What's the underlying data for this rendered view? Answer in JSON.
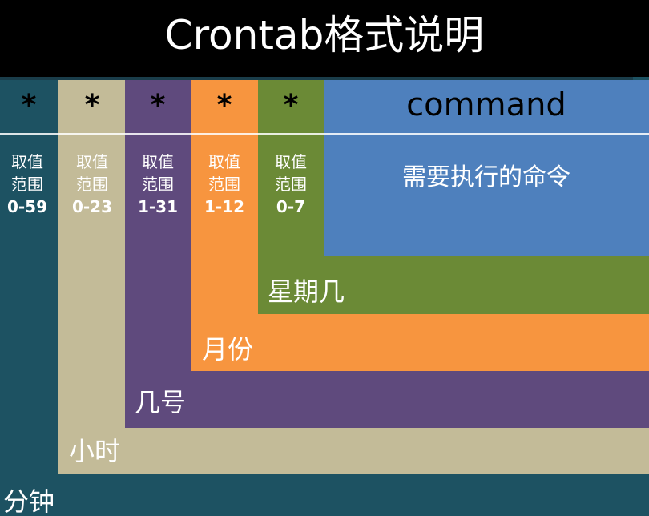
{
  "title": "Crontab格式说明",
  "fields": [
    {
      "star": "*",
      "range_label_1": "取值",
      "range_label_2": "范围",
      "range": "0-59",
      "name": "分钟",
      "color": "#1d5262"
    },
    {
      "star": "*",
      "range_label_1": "取值",
      "range_label_2": "范围",
      "range": "0-23",
      "name": "小时",
      "color": "#c3bb98"
    },
    {
      "star": "*",
      "range_label_1": "取值",
      "range_label_2": "范围",
      "range": "1-31",
      "name": "几号",
      "color": "#5f4a7d"
    },
    {
      "star": "*",
      "range_label_1": "取值",
      "range_label_2": "范围",
      "range": "1-12",
      "name": "月份",
      "color": "#f7953f"
    },
    {
      "star": "*",
      "range_label_1": "取值",
      "range_label_2": "范围",
      "range": "0-7",
      "name": "星期几",
      "color": "#6b8a36"
    }
  ],
  "command": {
    "label": "command",
    "description": "需要执行的命令",
    "color": "#4e80bd"
  },
  "colors": {
    "header": "#000000",
    "text": "#ffffff"
  }
}
